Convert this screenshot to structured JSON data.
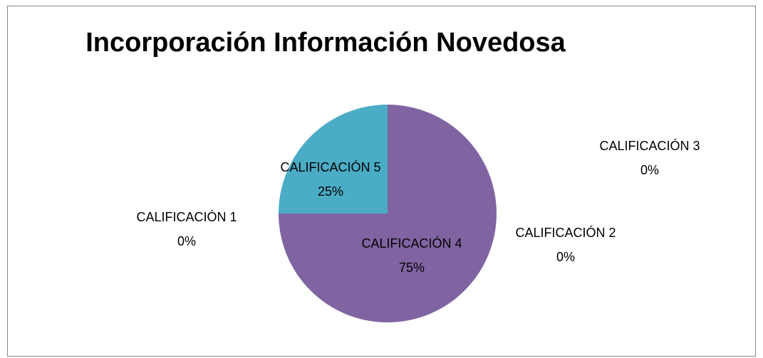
{
  "chart_data": {
    "type": "pie",
    "title": "Incorporación Información Novedosa",
    "categories": [
      "CALIFICACIÓN 1",
      "CALIFICACIÓN 2",
      "CALIFICACIÓN 3",
      "CALIFICACIÓN 4",
      "CALIFICACIÓN 5"
    ],
    "values": [
      0,
      0,
      0,
      75,
      25
    ],
    "value_labels": [
      "0%",
      "0%",
      "0%",
      "75%",
      "25%"
    ],
    "colors": [
      "#4f81bd",
      "#c0504d",
      "#9bbb59",
      "#8064a2",
      "#4bacc6"
    ]
  }
}
